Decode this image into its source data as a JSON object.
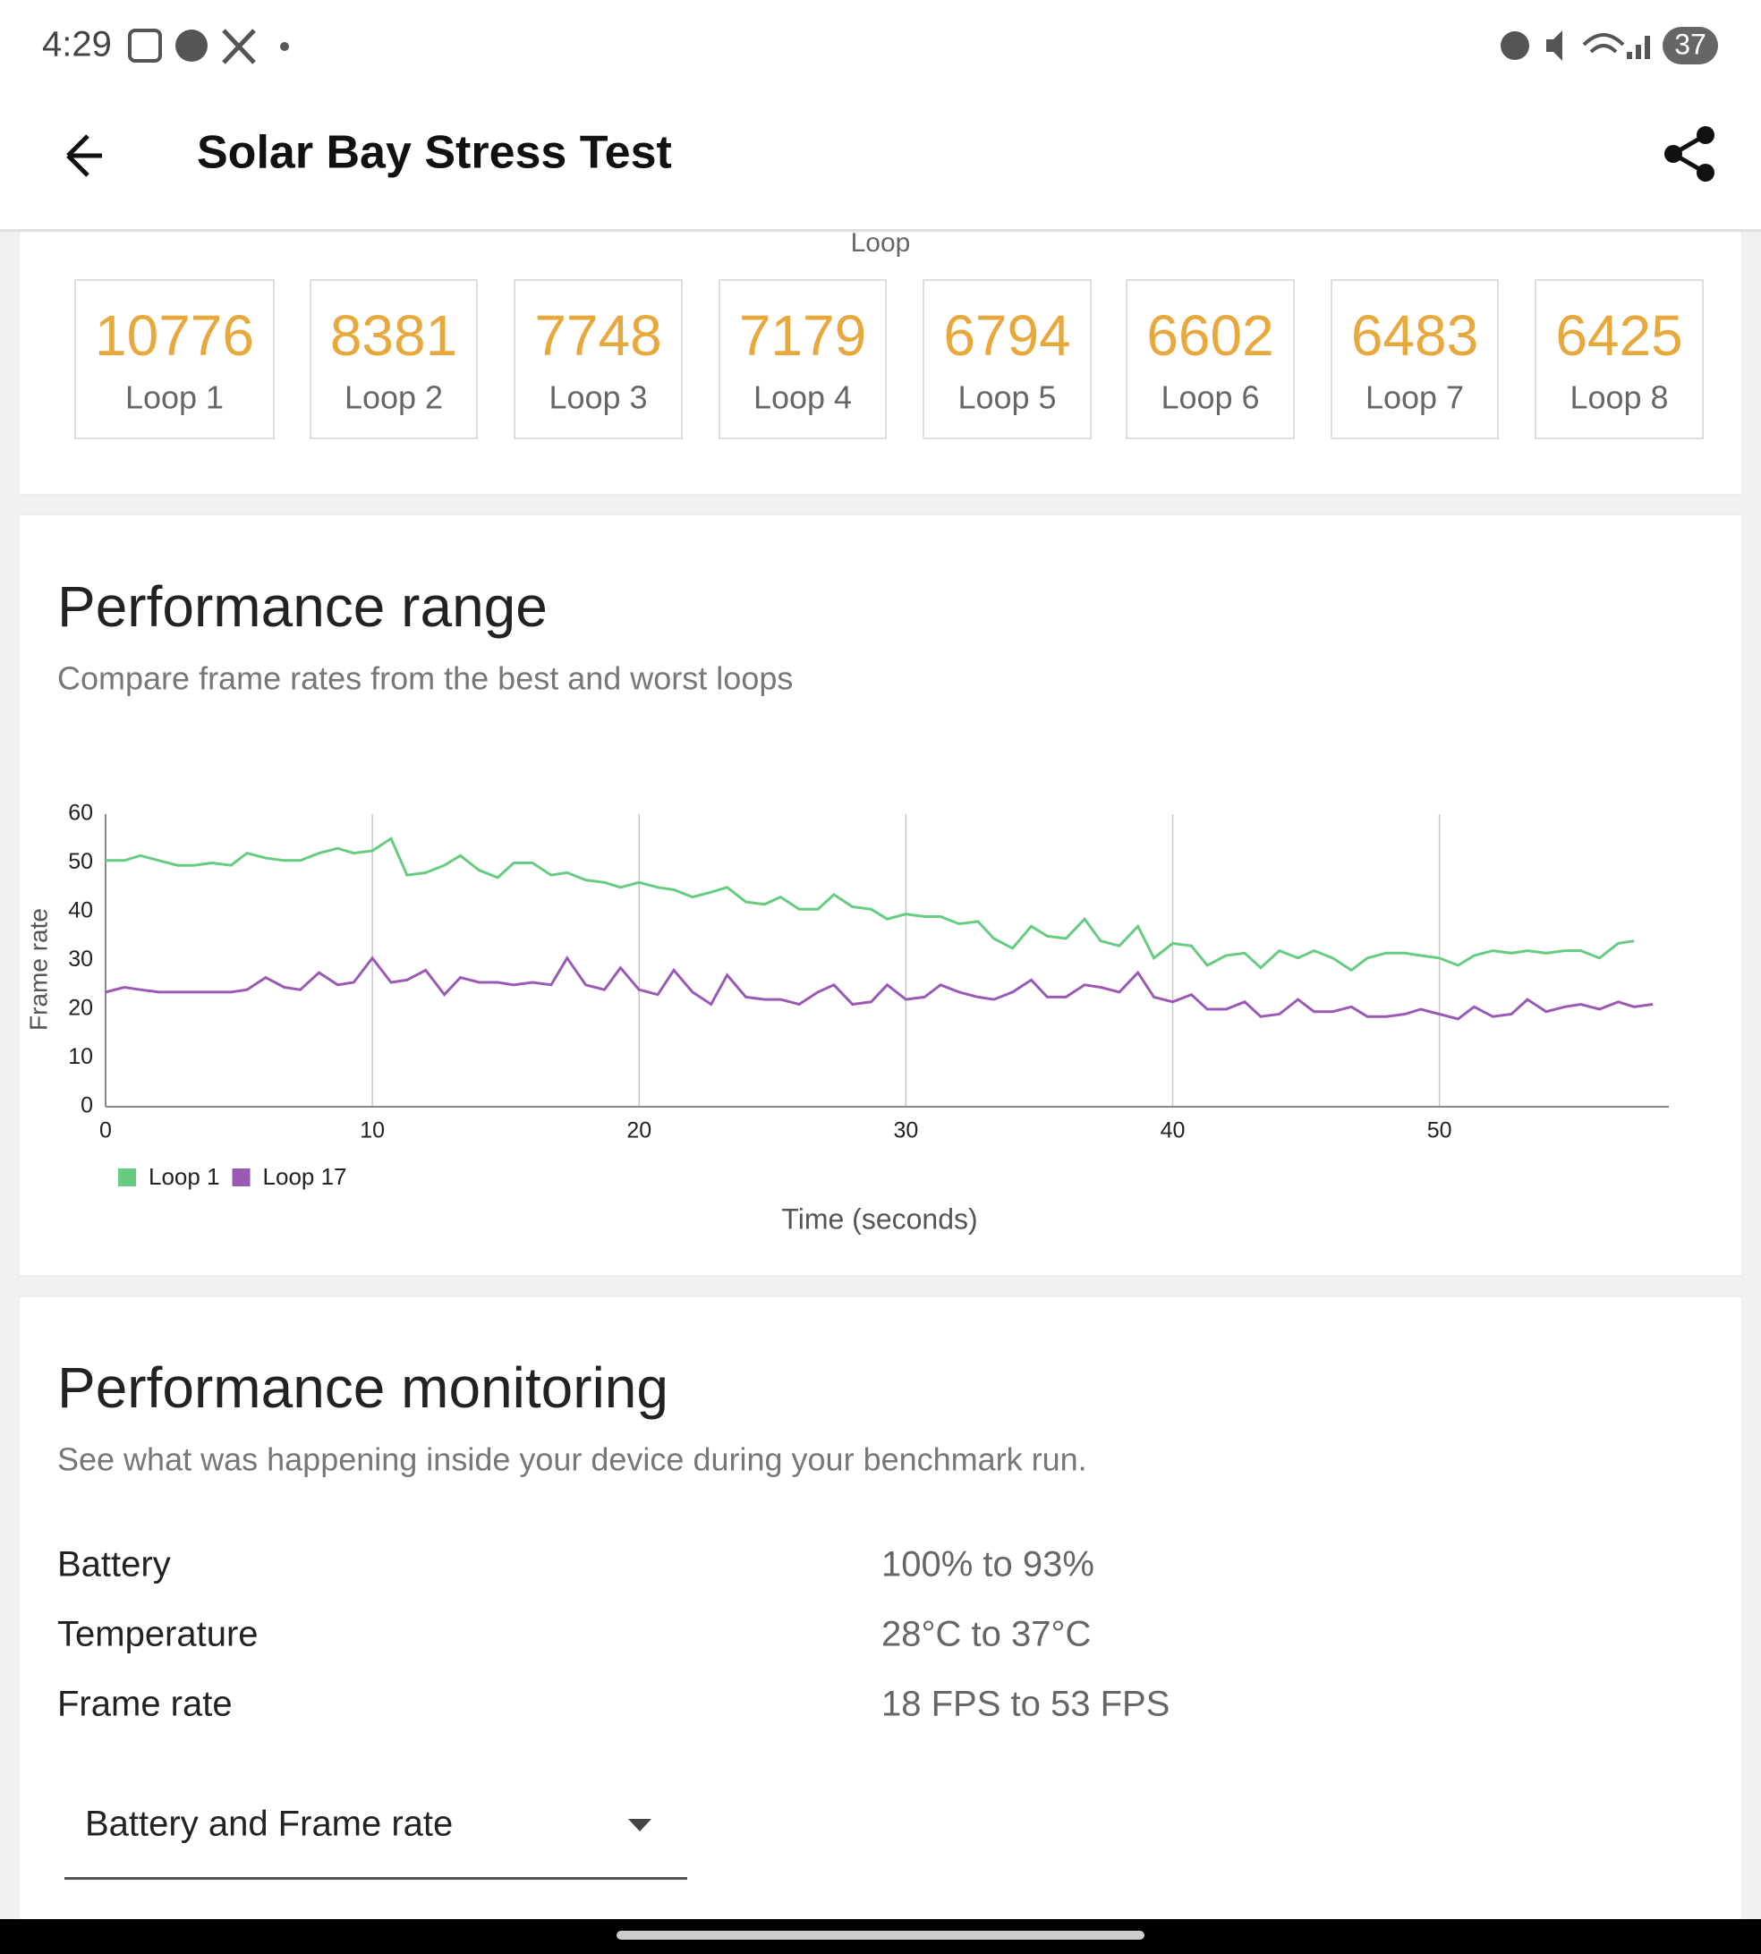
{
  "status_bar": {
    "time": "4:29",
    "battery": "37"
  },
  "app_bar": {
    "title": "Solar Bay Stress Test"
  },
  "loop_scores": {
    "axis_label": "Loop",
    "items": [
      {
        "score": "10776",
        "label": "Loop 1"
      },
      {
        "score": "8381",
        "label": "Loop 2"
      },
      {
        "score": "7748",
        "label": "Loop 3"
      },
      {
        "score": "7179",
        "label": "Loop 4"
      },
      {
        "score": "6794",
        "label": "Loop 5"
      },
      {
        "score": "6602",
        "label": "Loop 6"
      },
      {
        "score": "6483",
        "label": "Loop 7"
      },
      {
        "score": "6425",
        "label": "Loop 8"
      }
    ]
  },
  "chart_data": {
    "type": "line",
    "title": "Performance range",
    "subtitle": "Compare frame rates from the best and worst loops",
    "x_label": "Time (seconds)",
    "y_label": "Frame rate",
    "x": [
      0,
      0.7,
      1.3,
      2,
      2.7,
      3.3,
      4,
      4.7,
      5.3,
      6,
      6.7,
      7.3,
      8,
      8.7,
      9.3,
      10,
      10.7,
      11.3,
      12,
      12.7,
      13.3,
      14,
      14.7,
      15.3,
      16,
      16.7,
      17.3,
      18,
      18.7,
      19.3,
      20,
      20.7,
      21.3,
      22,
      22.7,
      23.3,
      24,
      24.7,
      25.3,
      26,
      26.7,
      27.3,
      28,
      28.7,
      29.3,
      30,
      30.7,
      31.3,
      32,
      32.7,
      33.3,
      34,
      34.7,
      35.3,
      36,
      36.7,
      37.3,
      38,
      38.7,
      39.3,
      40,
      40.7,
      41.3,
      42,
      42.7,
      43.3,
      44,
      44.7,
      45.3,
      46,
      46.7,
      47.3,
      48,
      48.7,
      49.3,
      50,
      50.7,
      51.3,
      52,
      52.7,
      53.3,
      54,
      54.7,
      55.3,
      56,
      56.7,
      57.3,
      58
    ],
    "series": [
      {
        "name": "Loop 1",
        "color": "#66cc80",
        "values": [
          50.5,
          50.5,
          51.5,
          50.5,
          49.5,
          49.5,
          50,
          49.5,
          52,
          51,
          50.5,
          50.5,
          52,
          53,
          52,
          52.5,
          55,
          47.5,
          48,
          49.5,
          51.5,
          48.5,
          47,
          50,
          50,
          47.5,
          48,
          46.5,
          46,
          45,
          46,
          45,
          44.5,
          43,
          44,
          45,
          42,
          41.5,
          43,
          40.5,
          40.5,
          43.5,
          41,
          40.5,
          38.5,
          39.5,
          39,
          39,
          37.5,
          38,
          34.5,
          32.5,
          37,
          35,
          34.5,
          38.5,
          34,
          33,
          37,
          30.5,
          33.5,
          33,
          29,
          31,
          31.5,
          28.5,
          32,
          30.5,
          32,
          30.5,
          28,
          30.5,
          31.5,
          31.5,
          31,
          30.5,
          29,
          31,
          32,
          31.5,
          32,
          31.5,
          32,
          32,
          30.5,
          33.5,
          34,
          null
        ]
      },
      {
        "name": "Loop 17",
        "color": "#9b59b6",
        "values": [
          23.5,
          24.5,
          24,
          23.5,
          23.5,
          23.5,
          23.5,
          23.5,
          24,
          26.5,
          24.5,
          24,
          27.5,
          25,
          25.5,
          30.5,
          25.5,
          26,
          28,
          23,
          26.5,
          25.5,
          25.5,
          25,
          25.5,
          25,
          30.5,
          25,
          24,
          28.5,
          24,
          23,
          28,
          23.5,
          21,
          27,
          22.5,
          22,
          22,
          21,
          23.5,
          25,
          21,
          21.5,
          25,
          22,
          22.5,
          25,
          23.5,
          22.5,
          22,
          23.5,
          26,
          22.5,
          22.5,
          25,
          24.5,
          23.5,
          27.5,
          22.5,
          21.5,
          23,
          20,
          20,
          21.5,
          18.5,
          19,
          22,
          19.5,
          19.5,
          20.5,
          18.5,
          18.5,
          19,
          20,
          19,
          18,
          20.5,
          18.5,
          19,
          22,
          19.5,
          20.5,
          21,
          20,
          21.5,
          20.5,
          21
        ]
      }
    ],
    "xlim": [
      0,
      58.6
    ],
    "ylim": [
      0,
      60
    ],
    "xticks": [
      0,
      10,
      20,
      30,
      40,
      50
    ],
    "yticks": [
      0,
      10,
      20,
      30,
      40,
      50,
      60
    ],
    "x_grid": true,
    "legend": "bottom-left"
  },
  "performance_monitoring": {
    "title": "Performance monitoring",
    "subtitle": "See what was happening inside your device during your benchmark run.",
    "rows": [
      [
        "Battery",
        "100% to 93%"
      ],
      [
        "Temperature",
        "28°C to 37°C"
      ],
      [
        "Frame rate",
        "18 FPS to 53 FPS"
      ]
    ],
    "dropdown": "Battery and Frame rate"
  }
}
